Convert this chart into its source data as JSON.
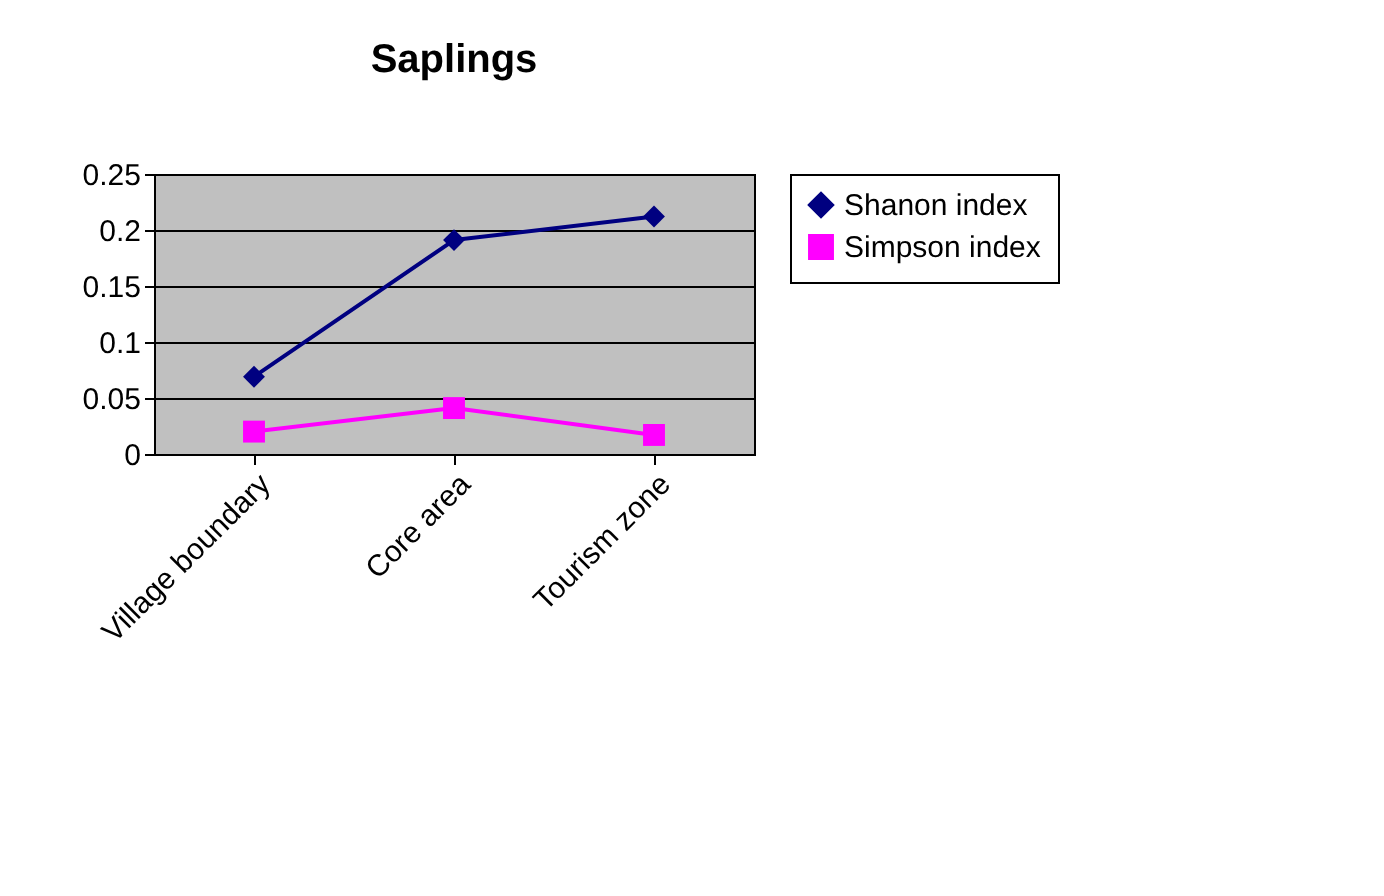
{
  "chart_data": {
    "type": "line",
    "title": "Saplings",
    "categories": [
      "Village boundary",
      "Core area",
      "Tourism zone"
    ],
    "series": [
      {
        "name": "Shanon index",
        "color": "#000080",
        "values": [
          0.069,
          0.191,
          0.212
        ],
        "marker": "diamond"
      },
      {
        "name": "Simpson index",
        "color": "#ff00ff",
        "values": [
          0.02,
          0.041,
          0.017
        ],
        "marker": "square"
      }
    ],
    "ylim": [
      0,
      0.25
    ],
    "yticks": [
      0,
      0.05,
      0.1,
      0.15,
      0.2,
      0.25
    ],
    "grid": "y",
    "legend": "right",
    "line_style": "solid"
  }
}
